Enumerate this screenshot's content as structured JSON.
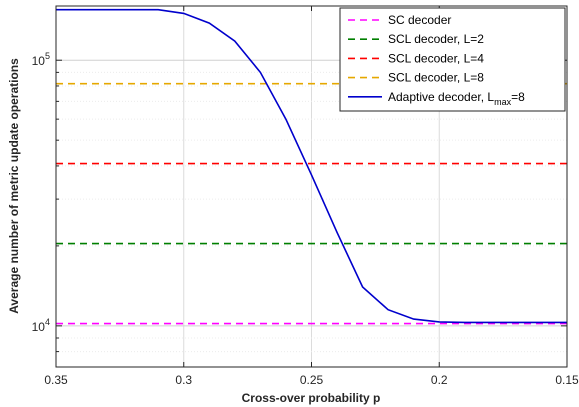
{
  "chart_data": {
    "type": "line",
    "title": "",
    "xlabel": "Cross-over probability p",
    "ylabel": "Average number of metric update operations",
    "x_reversed": true,
    "xlim": [
      0.15,
      0.35
    ],
    "y_scale": "log",
    "ylim": [
      7000,
      160000
    ],
    "grid": true,
    "legend_position": "top-right",
    "x_ticks": [
      {
        "value": 0.35,
        "label": "0.35"
      },
      {
        "value": 0.3,
        "label": "0.3"
      },
      {
        "value": 0.25,
        "label": "0.25"
      },
      {
        "value": 0.2,
        "label": "0.2"
      },
      {
        "value": 0.15,
        "label": "0.15"
      }
    ],
    "y_ticks": [
      {
        "value": 10000,
        "base": "10",
        "exp": "4"
      },
      {
        "value": 100000,
        "base": "10",
        "exp": "5"
      }
    ],
    "series": [
      {
        "name": "SC decoder",
        "color": "#ff00ff",
        "dash": "dashed",
        "x": [
          0.35,
          0.15
        ],
        "y": [
          10200,
          10200
        ]
      },
      {
        "name": "SCL decoder, L=2",
        "color": "#007f00",
        "dash": "dashed",
        "x": [
          0.35,
          0.15
        ],
        "y": [
          20400,
          20400
        ]
      },
      {
        "name": "SCL decoder, L=4",
        "color": "#ff0000",
        "dash": "dashed",
        "x": [
          0.35,
          0.15
        ],
        "y": [
          40800,
          40800
        ]
      },
      {
        "name": "SCL decoder, L=8",
        "color": "#e6a800",
        "dash": "dashed",
        "x": [
          0.35,
          0.15
        ],
        "y": [
          81600,
          81600
        ]
      },
      {
        "name": "Adaptive decoder, L",
        "name_sub": "max",
        "name_suffix": "=8",
        "color": "#0000cc",
        "dash": "solid",
        "x": [
          0.35,
          0.34,
          0.33,
          0.32,
          0.31,
          0.3,
          0.29,
          0.28,
          0.27,
          0.26,
          0.25,
          0.24,
          0.23,
          0.22,
          0.21,
          0.2,
          0.19,
          0.18,
          0.17,
          0.16,
          0.15
        ],
        "y": [
          155000,
          155000,
          155000,
          155000,
          155000,
          150000,
          138000,
          118000,
          90000,
          60000,
          37000,
          22500,
          14000,
          11500,
          10600,
          10350,
          10300,
          10300,
          10300,
          10300,
          10300
        ]
      }
    ]
  }
}
